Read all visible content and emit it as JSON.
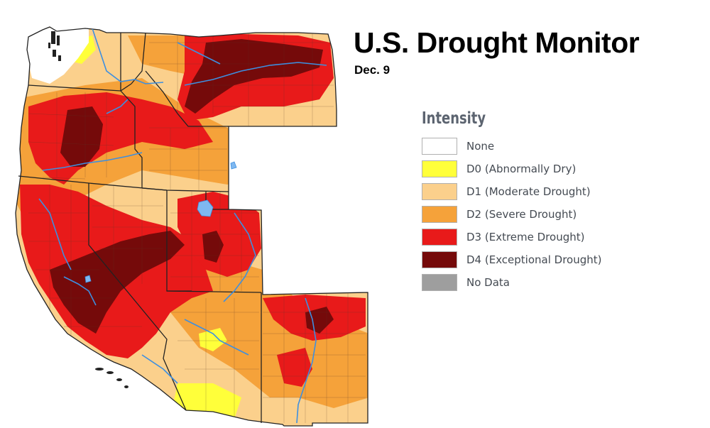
{
  "title": "U.S. Drought Monitor",
  "subtitle": "Dec. 9",
  "legend": {
    "title": "Intensity",
    "items": [
      {
        "label": "None",
        "color": "#ffffff"
      },
      {
        "label": "D0 (Abnormally Dry)",
        "color": "#ffff3a"
      },
      {
        "label": "D1 (Moderate Drought)",
        "color": "#fbd08c"
      },
      {
        "label": "D2 (Severe Drought)",
        "color": "#f5a23a"
      },
      {
        "label": "D3 (Extreme Drought)",
        "color": "#e81a1a"
      },
      {
        "label": "D4 (Exceptional Drought)",
        "color": "#750a0a"
      },
      {
        "label": "No Data",
        "color": "#9e9e9e"
      }
    ]
  },
  "map": {
    "region": "western-us",
    "states": [
      "WA",
      "OR",
      "CA",
      "ID",
      "NV",
      "MT",
      "WY",
      "UT",
      "CO",
      "AZ",
      "NM"
    ]
  }
}
